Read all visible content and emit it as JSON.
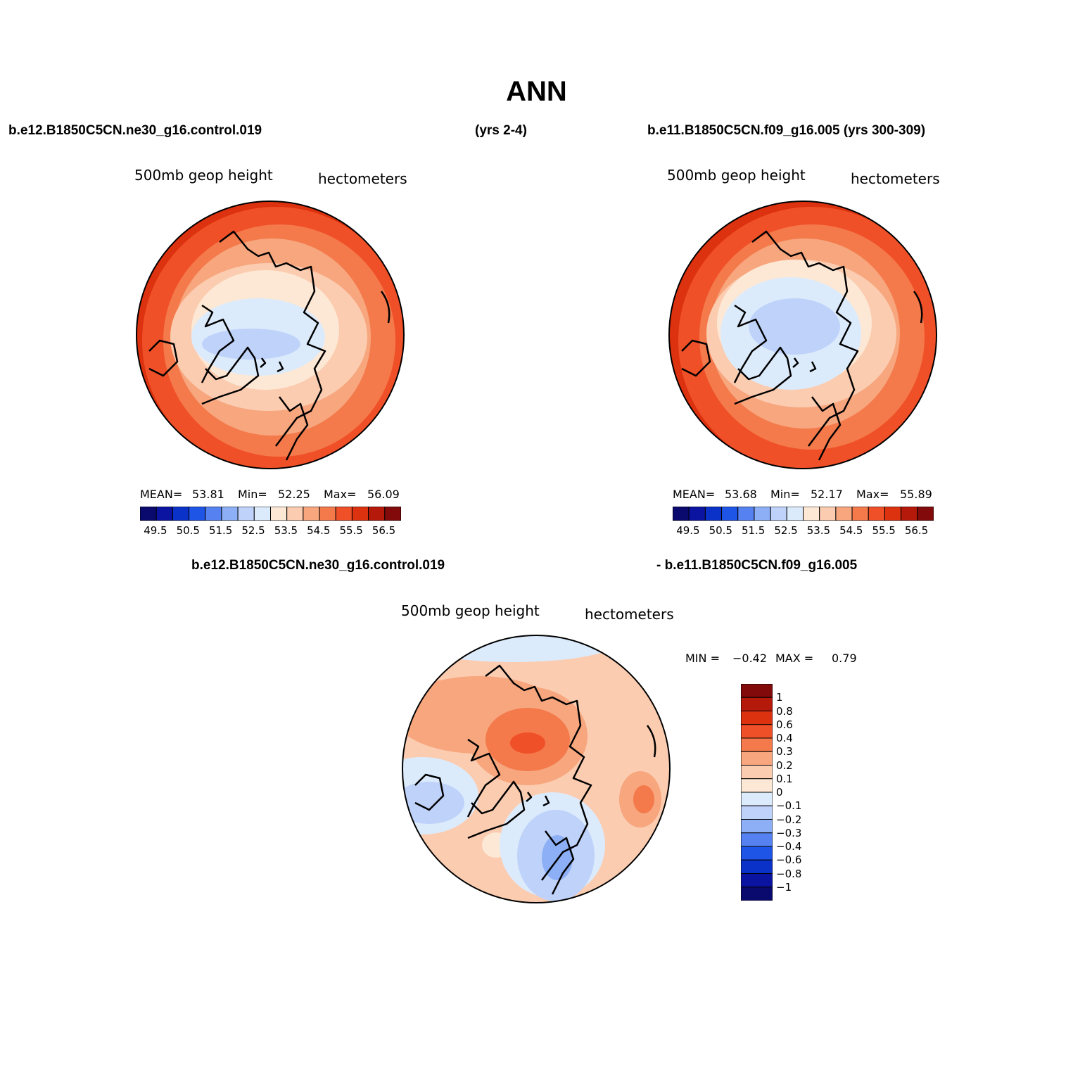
{
  "title": "ANN",
  "headers": {
    "left_case": "b.e12.B1850C5CN.ne30_g16.control.019",
    "left_years": "(yrs 2-4)",
    "right_case": "b.e11.B1850C5CN.f09_g16.005 (yrs 300-309)",
    "diff_left": "b.e12.B1850C5CN.ne30_g16.control.019",
    "diff_right": "- b.e11.B1850C5CN.f09_g16.005"
  },
  "panels": [
    {
      "variable": "500mb geop height",
      "units": "hectometers",
      "stats": {
        "mean_label": "MEAN=",
        "mean": "53.81",
        "min_label": "Min=",
        "min": "52.25",
        "max_label": "Max=",
        "max": "56.09"
      }
    },
    {
      "variable": "500mb geop height",
      "units": "hectometers",
      "stats": {
        "mean_label": "MEAN=",
        "mean": "53.68",
        "min_label": "Min=",
        "min": "52.17",
        "max_label": "Max=",
        "max": "55.89"
      }
    },
    {
      "variable": "500mb geop height",
      "units": "hectometers",
      "stats": {
        "min_label": "MIN =",
        "min": "−0.42",
        "max_label": "MAX =",
        "max": "0.79"
      }
    }
  ],
  "colorbar_abs": {
    "colors": [
      "#0a0a6e",
      "#0a14a0",
      "#0a32c8",
      "#1e55e6",
      "#5582f0",
      "#8caff5",
      "#bed2fa",
      "#dcebfc",
      "#fde8d5",
      "#fbccb0",
      "#f7a67e",
      "#f47a4c",
      "#f05028",
      "#dc320f",
      "#b4190a",
      "#820a0a"
    ],
    "labels": [
      "49.5",
      "50.5",
      "51.5",
      "52.5",
      "53.5",
      "54.5",
      "55.5",
      "56.5"
    ]
  },
  "colorbar_diff": {
    "colors": [
      "#820a0a",
      "#b4190a",
      "#dc320f",
      "#f05028",
      "#f47a4c",
      "#f7a67e",
      "#fbccb0",
      "#fde8d5",
      "#dcebfc",
      "#bed2fa",
      "#8caff5",
      "#5582f0",
      "#1e55e6",
      "#0a32c8",
      "#0a14a0",
      "#0a0a6e"
    ],
    "labels": [
      "1",
      "0.8",
      "0.6",
      "0.4",
      "0.3",
      "0.2",
      "0.1",
      "0",
      "−0.1",
      "−0.2",
      "−0.3",
      "−0.4",
      "−0.6",
      "−0.8",
      "−1"
    ]
  }
}
